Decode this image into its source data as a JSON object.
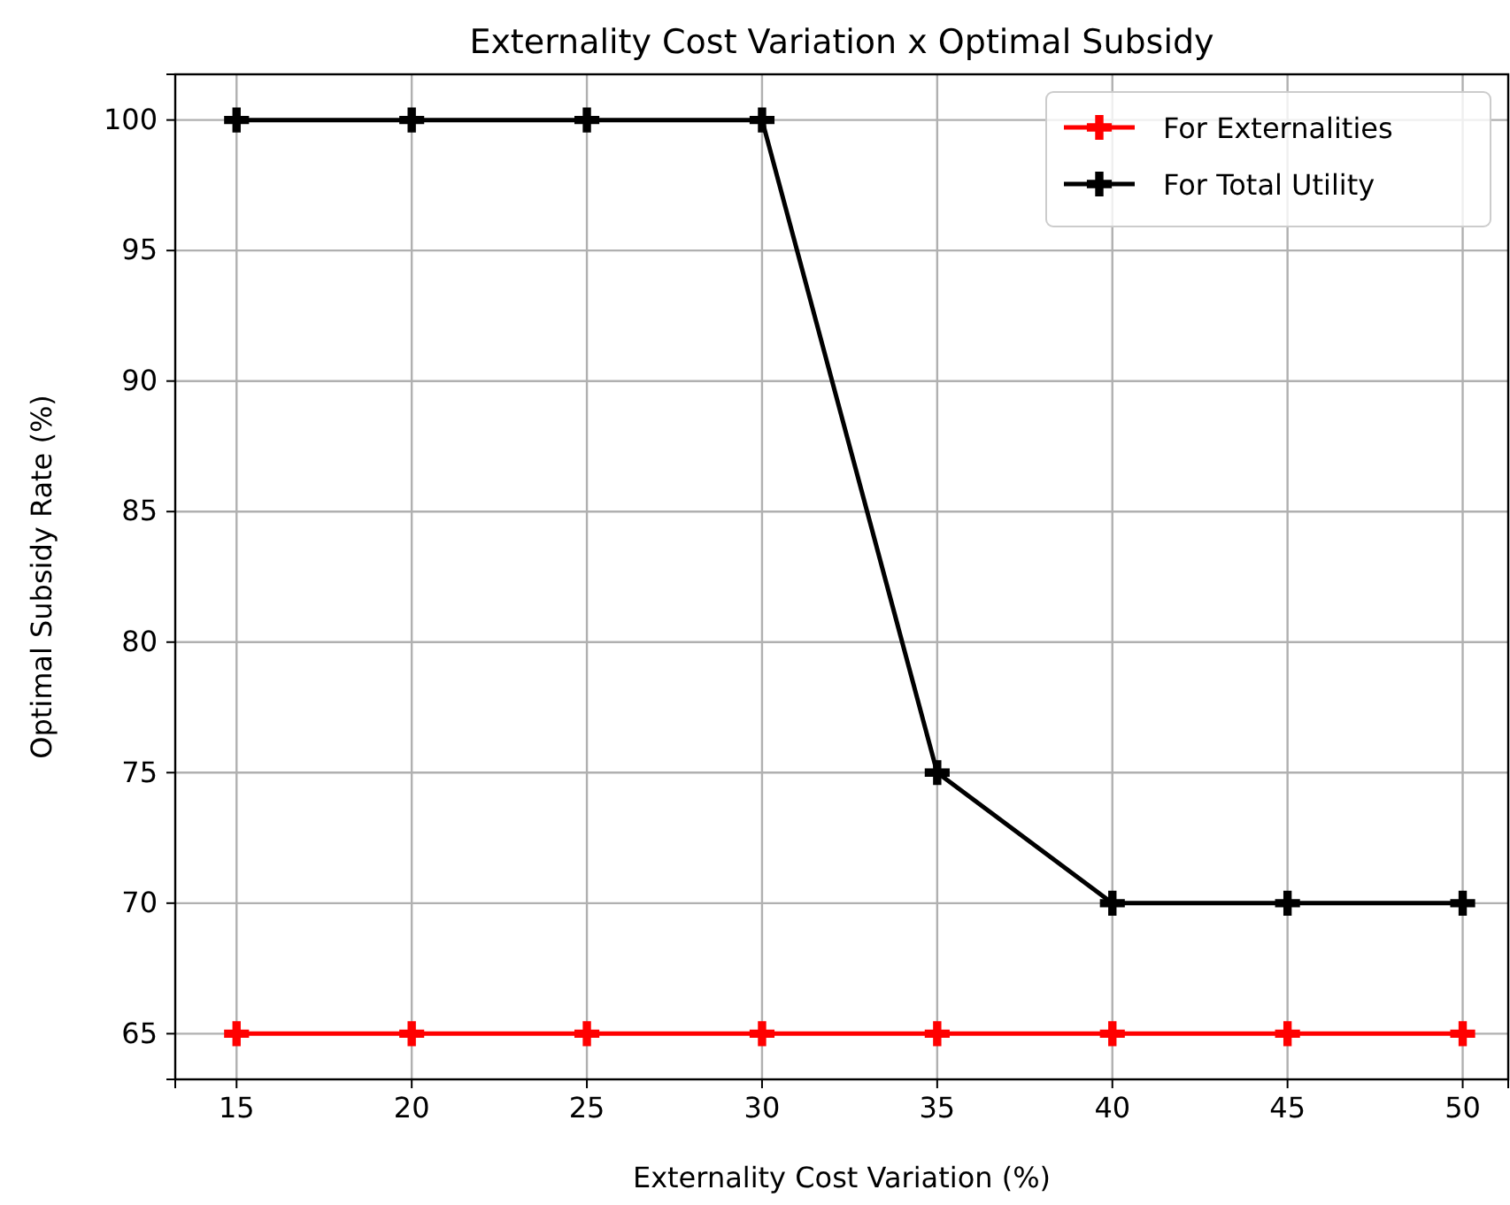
{
  "chart_data": {
    "type": "line",
    "title": "Externality Cost Variation x Optimal Subsidy",
    "xlabel": "Externality Cost Variation (%)",
    "ylabel": "Optimal Subsidy Rate (%)",
    "x": [
      15,
      20,
      25,
      30,
      35,
      40,
      45,
      50
    ],
    "series": [
      {
        "name": "For Externalities",
        "color": "#ff0000",
        "values": [
          65,
          65,
          65,
          65,
          65,
          65,
          65,
          65
        ]
      },
      {
        "name": "For Total Utility",
        "color": "#000000",
        "values": [
          100,
          100,
          100,
          100,
          75,
          70,
          70,
          70
        ]
      }
    ],
    "xlim": [
      13.25,
      51.3
    ],
    "xticks": [
      15,
      20,
      25,
      30,
      35,
      40,
      45,
      50
    ],
    "ylim": [
      63.25,
      101.75
    ],
    "yticks": [
      65,
      70,
      75,
      80,
      85,
      90,
      95,
      100
    ],
    "grid": true,
    "legend": "top right",
    "marker": "cross",
    "line_style": "solid"
  }
}
